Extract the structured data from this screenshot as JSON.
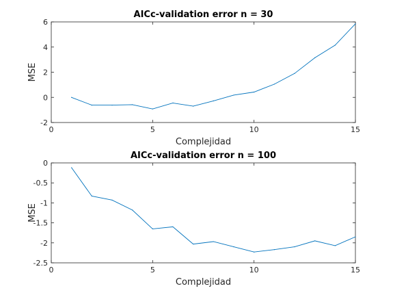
{
  "chart_data": [
    {
      "type": "line",
      "title": "AICc-validation error n = 30",
      "xlabel": "Complejidad",
      "ylabel": "MSE",
      "xlim": [
        0,
        15
      ],
      "ylim": [
        -2,
        6
      ],
      "xticks": [
        "0",
        "5",
        "10",
        "15"
      ],
      "yticks": [
        "-2",
        "0",
        "2",
        "4",
        "6"
      ],
      "grid": false,
      "series": [
        {
          "color": "#0072BD",
          "x": [
            1,
            2,
            3,
            4,
            5,
            6,
            7,
            8,
            9,
            10,
            11,
            12,
            13,
            14,
            15
          ],
          "y": [
            0.0,
            -0.62,
            -0.62,
            -0.58,
            -0.92,
            -0.45,
            -0.7,
            -0.28,
            0.18,
            0.42,
            1.05,
            1.9,
            3.15,
            4.15,
            5.85
          ]
        }
      ]
    },
    {
      "type": "line",
      "title": "AICc-validation error n = 100",
      "xlabel": "Complejidad",
      "ylabel": "MSE",
      "xlim": [
        0,
        15
      ],
      "ylim": [
        -2.5,
        0
      ],
      "xticks": [
        "0",
        "5",
        "10",
        "15"
      ],
      "yticks": [
        "-2.5",
        "-2",
        "-1.5",
        "-1",
        "-0.5",
        "0"
      ],
      "grid": false,
      "series": [
        {
          "color": "#0072BD",
          "x": [
            1,
            2,
            3,
            4,
            5,
            6,
            7,
            8,
            9,
            10,
            11,
            12,
            13,
            14,
            15
          ],
          "y": [
            -0.12,
            -0.83,
            -0.93,
            -1.18,
            -1.65,
            -1.6,
            -2.03,
            -1.97,
            -2.1,
            -2.23,
            -2.17,
            -2.1,
            -1.95,
            -2.07,
            -1.85
          ]
        }
      ]
    }
  ]
}
